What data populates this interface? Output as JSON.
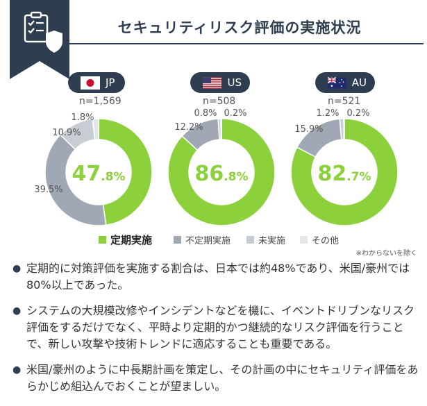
{
  "title": "セキュリティリスク評価の実施状況",
  "colors": {
    "navy": "#2e3d4f",
    "regular": "#8cd13b",
    "irregular": "#9fa8b4",
    "notDone": "#c7cdd4",
    "other": "#e4e7ea"
  },
  "regions": [
    {
      "code": "JP",
      "n": "n=1,569",
      "main_int": "47",
      "main_dec": ".8%",
      "flag": "jp-flag-icon"
    },
    {
      "code": "US",
      "n": "n=508",
      "main_int": "86",
      "main_dec": ".8%",
      "flag": "us-flag-icon"
    },
    {
      "code": "AU",
      "n": "n=521",
      "main_int": "82",
      "main_dec": ".7%",
      "flag": "au-flag-icon"
    }
  ],
  "chart_data": {
    "type": "pie",
    "categories": [
      "定期実施",
      "不定期実施",
      "未実施",
      "その他"
    ],
    "charts": [
      {
        "region": "JP",
        "values": [
          47.8,
          39.5,
          10.9,
          1.8
        ],
        "labels": [
          "",
          "39.5%",
          "10.9%",
          "1.8%"
        ]
      },
      {
        "region": "US",
        "values": [
          86.8,
          12.2,
          0.8,
          0.2
        ],
        "labels": [
          "",
          "12.2%",
          "0.8%",
          "0.2%"
        ]
      },
      {
        "region": "AU",
        "values": [
          82.7,
          15.9,
          1.2,
          0.2
        ],
        "labels": [
          "",
          "15.9%",
          "1.2%",
          "0.2%"
        ]
      }
    ]
  },
  "legend": [
    "定期実施",
    "不定期実施",
    "未実施",
    "その他"
  ],
  "note": "※わからないを除く",
  "bullets": [
    "定期的に対策評価を実施する割合は、日本では約48%であり、米国/豪州では80%以上であった。",
    "システムの大規模改修やインシデントなどを機に、イベントドリブンなリスク評価をするだけでなく、平時より定期的かつ継続的なリスク評価を行うことで、新しい攻撃や技術トレンドに適応することも重要である。",
    "米国/豪州のように中長期計画を策定し、その計画の中にセキュリティ評価をあらかじめ組込んでおくことが望ましい。"
  ]
}
